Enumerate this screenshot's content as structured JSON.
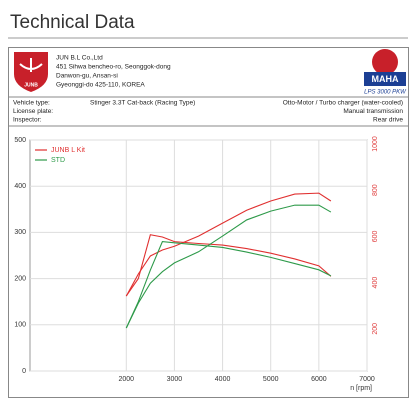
{
  "header": {
    "title": "Technical Data"
  },
  "company": {
    "logo_text": "JUNB",
    "lines": [
      "JUN B.L Co.,Ltd",
      "451 Sihwa bencheo-ro, Seonggok-dong",
      "Danwon-gu, Ansan-si",
      "Gyeonggi-do 425-110, KOREA"
    ],
    "maha_text": "MAHA",
    "maha_model": "LPS 3000 PKW"
  },
  "details": {
    "rows": [
      [
        "Vehicle type:",
        "Stinger 3.3T Cat-back (Racing Type)",
        "Otto-Motor / Turbo charger (water-cooled)"
      ],
      [
        "License plate:",
        "",
        "Manual transmission"
      ],
      [
        "Inspector:",
        "",
        "Rear drive"
      ]
    ]
  },
  "chart_data": {
    "type": "line",
    "x_label": "n [rpm]",
    "x": [
      2000,
      2250,
      2500,
      2750,
      3000,
      3500,
      4000,
      4500,
      5000,
      5500,
      6000,
      6250
    ],
    "xlim": [
      0,
      7000
    ],
    "xticks": [
      2000,
      3000,
      4000,
      5000,
      6000,
      7000
    ],
    "ylim": [
      0,
      500
    ],
    "yticks": [
      0,
      100,
      200,
      300,
      400,
      500
    ],
    "y2lim": [
      0,
      1000
    ],
    "y2ticks": [
      0,
      200,
      400,
      600,
      800,
      1000
    ],
    "y2_color": "#e04040",
    "grid": true,
    "legend": "upper-left",
    "series": [
      {
        "name": "JUNB L Kit",
        "color": "#e03030",
        "values": [
          162,
          210,
          249,
          262,
          270,
          292,
          320,
          348,
          368,
          383,
          385,
          368
        ],
        "y2_values": [
          325,
          400,
          590,
          580,
          560,
          552,
          545,
          530,
          510,
          485,
          455,
          410
        ]
      },
      {
        "name": "STD",
        "color": "#2e9a4a",
        "values": [
          93,
          147,
          190,
          215,
          234,
          258,
          292,
          327,
          346,
          359,
          359,
          344
        ],
        "y2_values": [
          186,
          300,
          437,
          560,
          555,
          545,
          535,
          515,
          492,
          465,
          438,
          412
        ]
      }
    ]
  }
}
